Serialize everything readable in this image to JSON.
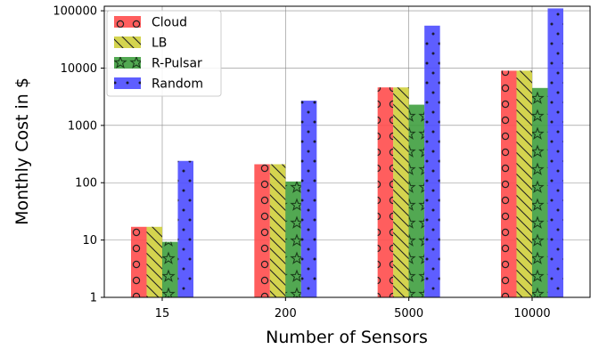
{
  "chart_data": {
    "type": "bar",
    "title": "",
    "xlabel": "Number of Sensors",
    "ylabel": "Monthly Cost in $",
    "y_scale": "log",
    "ylim": [
      1,
      120000
    ],
    "yticks": [
      1,
      10,
      100,
      1000,
      10000,
      100000
    ],
    "ytick_labels": [
      "1",
      "10",
      "100",
      "1000",
      "10000",
      "100000"
    ],
    "categories": [
      "15",
      "200",
      "5000",
      "10000"
    ],
    "grid": true,
    "legend": "top-left",
    "series": [
      {
        "name": "Cloud",
        "color": "#ff4d4d",
        "hatch": "circles",
        "values": [
          17,
          210,
          4600,
          9000
        ]
      },
      {
        "name": "LB",
        "color": "#cfcf3c",
        "hatch": "diagonal",
        "values": [
          17,
          210,
          4600,
          9000
        ]
      },
      {
        "name": "R-Pulsar",
        "color": "#3f9f3f",
        "hatch": "stars",
        "values": [
          9.3,
          105,
          2300,
          4500
        ]
      },
      {
        "name": "Random",
        "color": "#4d4dff",
        "hatch": "dots",
        "values": [
          240,
          2700,
          55000,
          110000
        ]
      }
    ]
  }
}
